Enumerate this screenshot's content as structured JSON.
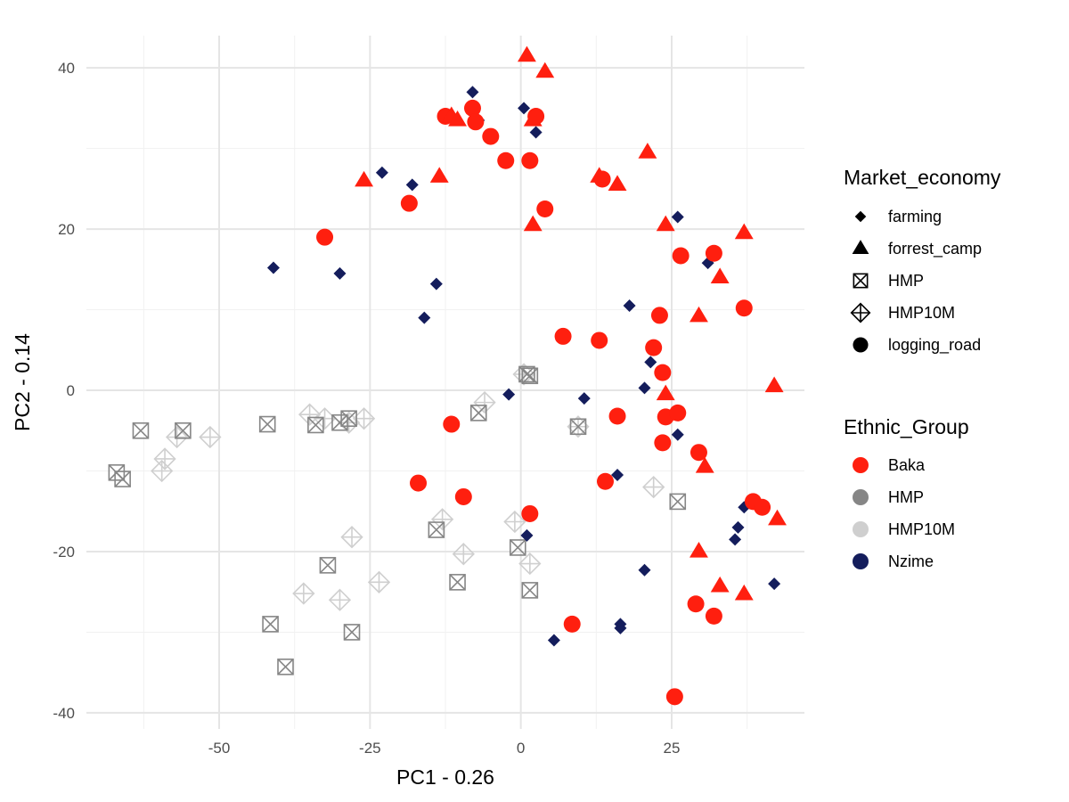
{
  "chart_data": {
    "type": "scatter",
    "title": "",
    "xlabel": "PC1 - 0.26",
    "ylabel": "PC2 - 0.14",
    "xlim": [
      -72,
      47
    ],
    "ylim": [
      -42,
      44
    ],
    "xticks": [
      -50,
      -25,
      0,
      25
    ],
    "xtick_labels": [
      "-50",
      "-25",
      "0",
      "25"
    ],
    "yticks": [
      -40,
      -20,
      0,
      20,
      40
    ],
    "ytick_labels": [
      "-40",
      "-20",
      "0",
      "20",
      "40"
    ],
    "grid": true,
    "legend_placement": "right",
    "shape_legend": {
      "title": "Market_economy",
      "entries": [
        {
          "label": "farming",
          "shape": "diamond"
        },
        {
          "label": "forrest_camp",
          "shape": "triangle"
        },
        {
          "label": "HMP",
          "shape": "square-cross"
        },
        {
          "label": "HMP10M",
          "shape": "diamond-plus"
        },
        {
          "label": "logging_road",
          "shape": "circle"
        }
      ]
    },
    "color_legend": {
      "title": "Ethnic_Group",
      "entries": [
        {
          "label": "Baka",
          "color": "#ff1f0f"
        },
        {
          "label": "HMP",
          "color": "#868686"
        },
        {
          "label": "HMP10M",
          "color": "#cfcfcf"
        },
        {
          "label": "Nzime",
          "color": "#141d5c"
        }
      ]
    },
    "series": [
      {
        "name": "Nzime",
        "group": "farming",
        "shape": "diamond",
        "color": "#141d5c",
        "points": [
          [
            -8,
            37
          ],
          [
            0.5,
            35
          ],
          [
            -7,
            33.5
          ],
          [
            2.5,
            32
          ],
          [
            -23,
            27
          ],
          [
            -18,
            25.5
          ],
          [
            26,
            21.5
          ],
          [
            -41,
            15.2
          ],
          [
            -30,
            14.5
          ],
          [
            -14,
            13.2
          ],
          [
            31,
            15.8
          ],
          [
            -16,
            9
          ],
          [
            18,
            10.5
          ],
          [
            21.5,
            3.5
          ],
          [
            20.5,
            0.3
          ],
          [
            -2,
            -0.5
          ],
          [
            10.5,
            -1
          ],
          [
            26,
            -5.5
          ],
          [
            16,
            -10.5
          ],
          [
            37,
            -14.5
          ],
          [
            36,
            -17
          ],
          [
            35.5,
            -18.5
          ],
          [
            1,
            -18
          ],
          [
            20.5,
            -22.3
          ],
          [
            42,
            -24
          ],
          [
            16.5,
            -29
          ],
          [
            16.5,
            -29.5
          ],
          [
            5.5,
            -31
          ]
        ]
      },
      {
        "name": "Baka",
        "group": "forrest_camp",
        "shape": "triangle",
        "color": "#ff1f0f",
        "points": [
          [
            1,
            41.5
          ],
          [
            4,
            39.5
          ],
          [
            -11.5,
            34
          ],
          [
            -10.5,
            33.5
          ],
          [
            2,
            33.5
          ],
          [
            -26,
            26
          ],
          [
            -13.5,
            26.5
          ],
          [
            21,
            29.5
          ],
          [
            13,
            26.5
          ],
          [
            16,
            25.5
          ],
          [
            2,
            20.5
          ],
          [
            24,
            20.5
          ],
          [
            37,
            19.5
          ],
          [
            33,
            14
          ],
          [
            29.5,
            9.2
          ],
          [
            42,
            0.5
          ],
          [
            24,
            -0.5
          ],
          [
            30.5,
            -9.5
          ],
          [
            42.5,
            -16
          ],
          [
            29.5,
            -20
          ],
          [
            33,
            -24.3
          ],
          [
            37,
            -25.3
          ]
        ]
      },
      {
        "name": "HMP",
        "group": "HMP",
        "shape": "square-cross",
        "color": "#868686",
        "points": [
          [
            1,
            2
          ],
          [
            1.5,
            1.8
          ],
          [
            -42,
            -4.2
          ],
          [
            -28.5,
            -3.5
          ],
          [
            -7,
            -2.8
          ],
          [
            -34,
            -4.3
          ],
          [
            -30,
            -4
          ],
          [
            -63,
            -5
          ],
          [
            -56,
            -5
          ],
          [
            9.5,
            -4.5
          ],
          [
            -67,
            -10.2
          ],
          [
            -66,
            -11
          ],
          [
            26,
            -13.8
          ],
          [
            -14,
            -17.3
          ],
          [
            -0.5,
            -19.5
          ],
          [
            -32,
            -21.7
          ],
          [
            -10.5,
            -23.8
          ],
          [
            1.5,
            -24.8
          ],
          [
            -41.5,
            -29
          ],
          [
            -28,
            -30
          ],
          [
            -39,
            -34.3
          ]
        ]
      },
      {
        "name": "HMP10M",
        "group": "HMP10M",
        "shape": "diamond-plus",
        "color": "#cfcfcf",
        "points": [
          [
            0.5,
            2
          ],
          [
            -6,
            -1.5
          ],
          [
            -35,
            -3
          ],
          [
            -32.5,
            -3.5
          ],
          [
            -26,
            -3.5
          ],
          [
            -28.5,
            -4
          ],
          [
            9.5,
            -4.5
          ],
          [
            -57,
            -5.8
          ],
          [
            -51.5,
            -5.8
          ],
          [
            -59,
            -8.5
          ],
          [
            -59.5,
            -10
          ],
          [
            22,
            -12
          ],
          [
            -13,
            -16
          ],
          [
            -1,
            -16.3
          ],
          [
            -28,
            -18.2
          ],
          [
            -9.5,
            -20.3
          ],
          [
            1.5,
            -21.5
          ],
          [
            -36,
            -25.2
          ],
          [
            -30,
            -26
          ],
          [
            -23.5,
            -23.8
          ]
        ]
      },
      {
        "name": "Baka",
        "group": "logging_road",
        "shape": "circle",
        "color": "#ff1f0f",
        "points": [
          [
            -8,
            35
          ],
          [
            -12.5,
            34
          ],
          [
            -7.5,
            33.3
          ],
          [
            2.5,
            34
          ],
          [
            -5,
            31.5
          ],
          [
            -2.5,
            28.5
          ],
          [
            1.5,
            28.5
          ],
          [
            -18.5,
            23.2
          ],
          [
            4,
            22.5
          ],
          [
            13.5,
            26.2
          ],
          [
            -32.5,
            19
          ],
          [
            32,
            17
          ],
          [
            26.5,
            16.7
          ],
          [
            37,
            10.2
          ],
          [
            23,
            9.3
          ],
          [
            7,
            6.7
          ],
          [
            13,
            6.2
          ],
          [
            22,
            5.3
          ],
          [
            23.5,
            2.2
          ],
          [
            -11.5,
            -4.2
          ],
          [
            16,
            -3.2
          ],
          [
            24,
            -3.3
          ],
          [
            26,
            -2.8
          ],
          [
            23.5,
            -6.5
          ],
          [
            29.5,
            -7.7
          ],
          [
            -17,
            -11.5
          ],
          [
            14,
            -11.3
          ],
          [
            -9.5,
            -13.2
          ],
          [
            1.5,
            -15.3
          ],
          [
            38.5,
            -13.8
          ],
          [
            40,
            -14.5
          ],
          [
            8.5,
            -29
          ],
          [
            29,
            -26.5
          ],
          [
            32,
            -28
          ],
          [
            25.5,
            -38
          ]
        ]
      }
    ]
  }
}
